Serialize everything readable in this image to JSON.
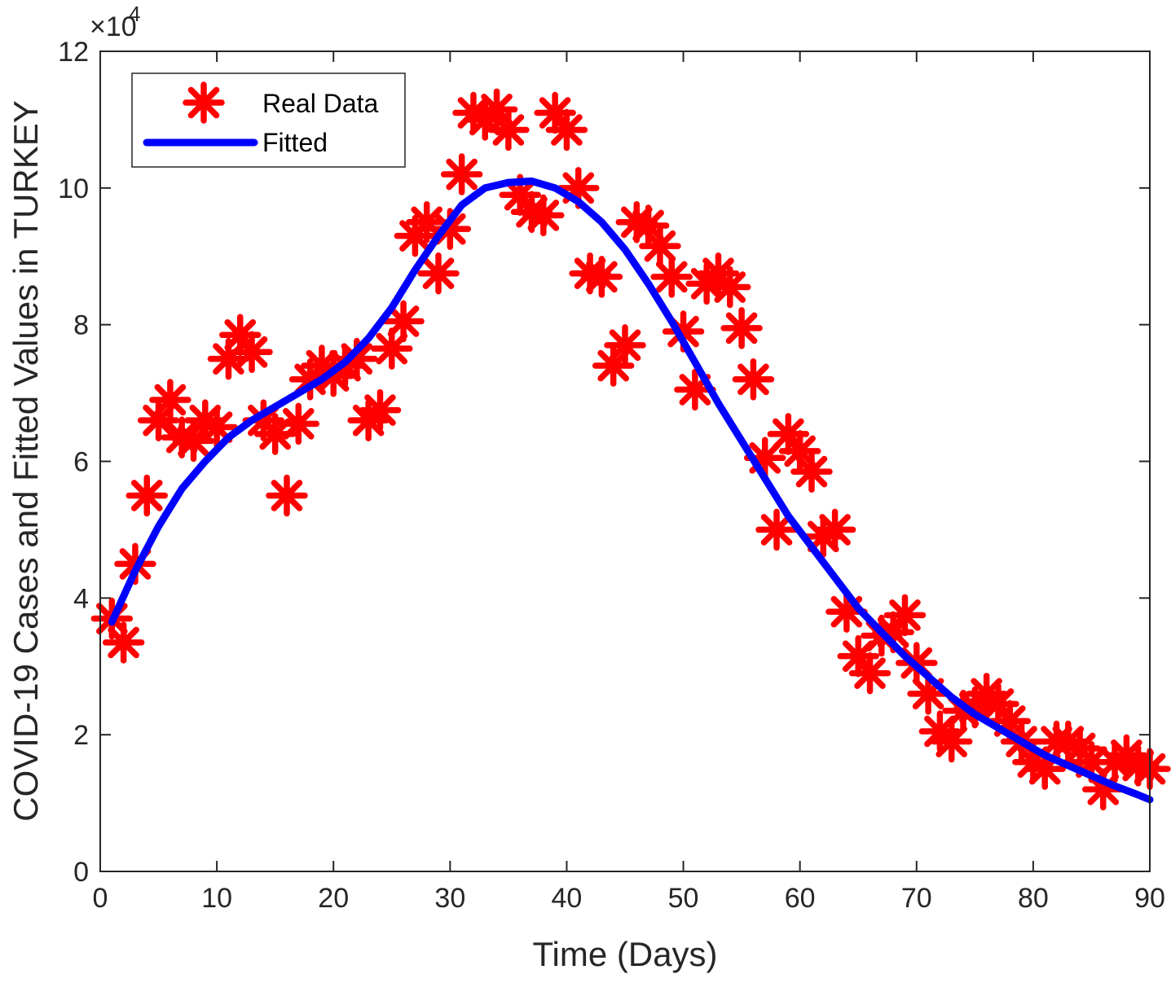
{
  "chart_data": {
    "type": "scatter",
    "title": "",
    "xlabel": "Time (Days)",
    "ylabel": "COVID-19 Cases and Fitted Values in TURKEY",
    "xlim": [
      0,
      90
    ],
    "ylim": [
      0,
      120000
    ],
    "grid": false,
    "xticks": [
      0,
      10,
      20,
      30,
      40,
      50,
      60,
      70,
      80,
      90
    ],
    "xtick_labels": [
      "0",
      "10",
      "20",
      "30",
      "40",
      "50",
      "60",
      "70",
      "80",
      "90"
    ],
    "yticks": [
      0,
      20000,
      40000,
      60000,
      80000,
      100000,
      120000
    ],
    "ytick_labels": [
      "0",
      "2",
      "4",
      "6",
      "8",
      "10",
      "12"
    ],
    "y_exponent_base": "×10",
    "y_exponent_power": "4",
    "axis_color": "#262626",
    "legend": {
      "position": "northwest",
      "entries": [
        {
          "label": "Real Data",
          "sample": "asterisk-marker",
          "color": "#FF0000"
        },
        {
          "label": "Fitted",
          "sample": "line",
          "color": "#0000FF"
        }
      ]
    },
    "series": [
      {
        "name": "Real Data",
        "type": "scatter",
        "marker": "asterisk",
        "color": "#FF0000",
        "x": [
          1,
          2,
          3,
          4,
          5,
          6,
          7,
          8,
          9,
          10,
          11,
          12,
          13,
          14,
          15,
          16,
          17,
          18,
          19,
          20,
          21,
          22,
          23,
          24,
          25,
          26,
          27,
          28,
          29,
          30,
          31,
          32,
          33,
          34,
          35,
          36,
          37,
          38,
          39,
          40,
          41,
          42,
          43,
          44,
          45,
          46,
          47,
          48,
          49,
          50,
          51,
          52,
          53,
          54,
          55,
          56,
          57,
          58,
          59,
          60,
          61,
          62,
          63,
          64,
          65,
          66,
          67,
          68,
          69,
          70,
          71,
          72,
          73,
          74,
          75,
          76,
          77,
          78,
          79,
          80,
          81,
          82,
          83,
          84,
          85,
          86,
          87,
          88,
          89,
          90
        ],
        "y": [
          37000,
          33500,
          45000,
          55000,
          66000,
          69000,
          63500,
          63000,
          66000,
          65000,
          75000,
          78500,
          76000,
          66000,
          64000,
          55000,
          65500,
          72000,
          74000,
          72500,
          74000,
          75000,
          66000,
          67500,
          76500,
          80500,
          93000,
          95000,
          87500,
          94000,
          102000,
          111000,
          110000,
          111500,
          108500,
          99000,
          96500,
          96000,
          111000,
          108500,
          100000,
          87500,
          87000,
          74000,
          77000,
          95000,
          94500,
          91500,
          87000,
          79000,
          70500,
          86000,
          87500,
          85500,
          79500,
          72000,
          60500,
          50000,
          64000,
          61500,
          58500,
          49000,
          50000,
          38000,
          31500,
          29000,
          34500,
          35000,
          37500,
          30500,
          26000,
          20500,
          19000,
          23500,
          24000,
          26000,
          24500,
          22000,
          19000,
          16000,
          15000,
          19000,
          19000,
          18000,
          16000,
          12000,
          16000,
          17000,
          15500,
          15000
        ]
      },
      {
        "name": "Fitted",
        "type": "line",
        "color": "#0000FF",
        "x": [
          1,
          3,
          5,
          7,
          9,
          11,
          13,
          15,
          17,
          19,
          21,
          23,
          25,
          27,
          29,
          31,
          33,
          35,
          37,
          39,
          41,
          43,
          45,
          47,
          49,
          51,
          53,
          55,
          57,
          59,
          61,
          63,
          65,
          67,
          69,
          71,
          73,
          75,
          77,
          79,
          81,
          83,
          85,
          87,
          89,
          90
        ],
        "y": [
          36500,
          44000,
          50500,
          56000,
          60000,
          63500,
          66000,
          68000,
          70000,
          72000,
          74500,
          78000,
          82500,
          88000,
          93000,
          97500,
          100000,
          100800,
          101000,
          100000,
          98000,
          95000,
          91000,
          86000,
          80500,
          74500,
          68500,
          63000,
          57500,
          52000,
          47500,
          43000,
          38500,
          35000,
          31500,
          28500,
          25500,
          23000,
          21000,
          19000,
          17000,
          15500,
          14000,
          12500,
          11200,
          10500
        ]
      }
    ]
  }
}
